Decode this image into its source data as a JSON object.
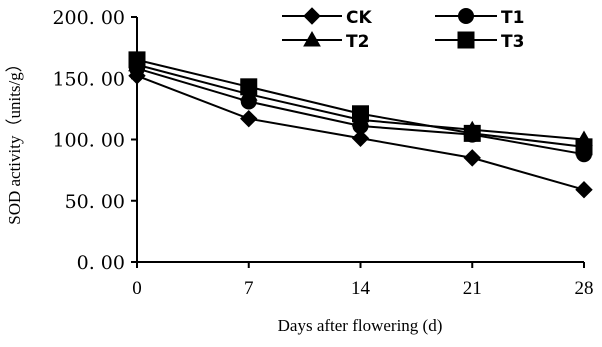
{
  "chart_data": {
    "type": "line",
    "xlabel": "Days after flowering (d)",
    "ylabel": "SOD activity（units/g）",
    "x": [
      0,
      7,
      14,
      21,
      28
    ],
    "x_tick_labels": [
      "0",
      "7",
      "14",
      "21",
      "28"
    ],
    "y_tick_labels": [
      "0. 00",
      "50. 00",
      "100. 00",
      "150. 00",
      "200. 00"
    ],
    "y_ticks": [
      0,
      50,
      100,
      150,
      200
    ],
    "ylim": [
      0,
      200
    ],
    "grid": false,
    "legend_position": "top-right",
    "series": [
      {
        "name": "CK",
        "marker": "diamond",
        "values": [
          152,
          117,
          101,
          85,
          59
        ]
      },
      {
        "name": "T1",
        "marker": "circle",
        "values": [
          158,
          131,
          111,
          104,
          88
        ]
      },
      {
        "name": "T2",
        "marker": "triangle",
        "values": [
          161,
          137,
          116,
          108,
          100
        ]
      },
      {
        "name": "T3",
        "marker": "square",
        "values": [
          165,
          143,
          121,
          105,
          94
        ]
      }
    ]
  }
}
